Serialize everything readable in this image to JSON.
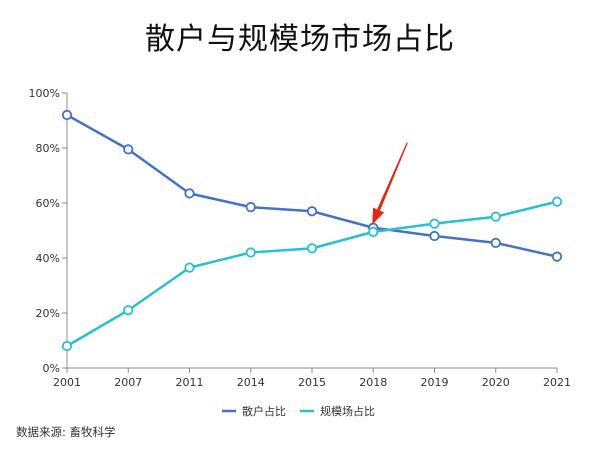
{
  "title": "散户与规模场市场占比",
  "source": "数据来源: 畜牧科学",
  "chart_data": {
    "type": "line",
    "categories": [
      "2001",
      "2007",
      "2011",
      "2014",
      "2015",
      "2018",
      "2019",
      "2020",
      "2021"
    ],
    "series": [
      {
        "name": "散户占比",
        "color": "#4472c4",
        "values": [
          92,
          79.5,
          63.5,
          58.5,
          57,
          51,
          48,
          45.5,
          40.5
        ]
      },
      {
        "name": "规模场占比",
        "color": "#29c0cf",
        "values": [
          8,
          21,
          36.5,
          42,
          43.5,
          49.5,
          52.5,
          55,
          60.5
        ]
      }
    ],
    "ylim": [
      0,
      100
    ],
    "yticks": [
      0,
      20,
      40,
      60,
      80,
      100
    ],
    "ytick_labels": [
      "0%",
      "20%",
      "40%",
      "60%",
      "80%",
      "100%"
    ],
    "xlabel": "",
    "ylabel": "",
    "grid": false,
    "legend_position": "bottom",
    "annotation": {
      "type": "arrow",
      "color": "#e0281b",
      "points_to_category": "2018"
    }
  }
}
